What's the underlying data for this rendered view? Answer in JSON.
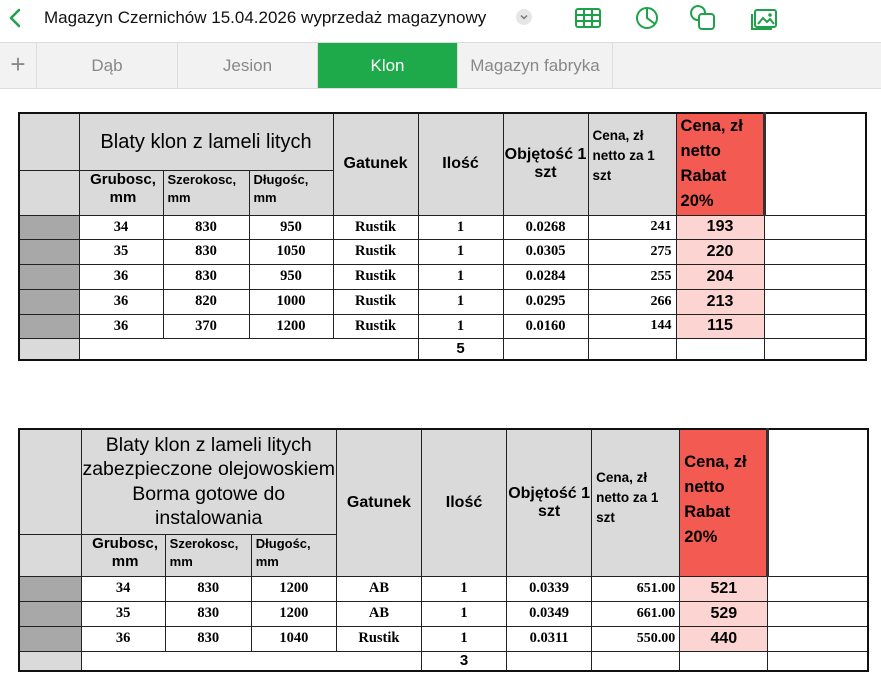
{
  "app": {
    "doc_title": "Magazyn Czernichów 15.04.2026 wyprzedaż magazynowy",
    "accent": "#1ea94b",
    "icons": [
      "back-chevron",
      "dropdown-chevron",
      "table-icon",
      "chart-icon",
      "shapes-icon",
      "media-icon",
      "add-sheet-icon"
    ]
  },
  "tabs": [
    {
      "label": "Dąb"
    },
    {
      "label": "Jesion"
    },
    {
      "label": "Klon",
      "active": true
    },
    {
      "label": "Magazyn fabryka"
    }
  ],
  "table1": {
    "title": "Blaty klon z lameli litych",
    "col_grubosc": "Grubosc, mm",
    "col_szerokosc": "Szerokosc, mm",
    "col_dlugosc": "Długośc, mm",
    "col_gatunek": "Gatunek",
    "col_ilosc": "Ilość",
    "col_objetosc": "Objętość 1 szt",
    "col_cena": "Cena, zł netto za 1 szt",
    "col_cena_rabat": "Cena, zł netto Rabat 20%",
    "rows": [
      {
        "g": "34",
        "s": "830",
        "d": "950",
        "gat": "Rustik",
        "il": "1",
        "obj": "0.0268",
        "cena": "241",
        "rabat": "193"
      },
      {
        "g": "35",
        "s": "830",
        "d": "1050",
        "gat": "Rustik",
        "il": "1",
        "obj": "0.0305",
        "cena": "275",
        "rabat": "220"
      },
      {
        "g": "36",
        "s": "830",
        "d": "950",
        "gat": "Rustik",
        "il": "1",
        "obj": "0.0284",
        "cena": "255",
        "rabat": "204"
      },
      {
        "g": "36",
        "s": "820",
        "d": "1000",
        "gat": "Rustik",
        "il": "1",
        "obj": "0.0295",
        "cena": "266",
        "rabat": "213"
      },
      {
        "g": "36",
        "s": "370",
        "d": "1200",
        "gat": "Rustik",
        "il": "1",
        "obj": "0.0160",
        "cena": "144",
        "rabat": "115"
      }
    ],
    "total": "5"
  },
  "table2": {
    "title": "Blaty klon z lameli litych zabezpieczone olejowoskiem Borma gotowe do instalowania",
    "col_grubosc": "Grubosc, mm",
    "col_szerokosc": "Szerokosc, mm",
    "col_dlugosc": "Długośc, mm",
    "col_gatunek": "Gatunek",
    "col_ilosc": "Ilość",
    "col_objetosc": "Objętość 1 szt",
    "col_cena": "Cena, zł netto za 1 szt",
    "col_cena_rabat": "Cena, zł netto Rabat 20%",
    "rows": [
      {
        "g": "34",
        "s": "830",
        "d": "1200",
        "gat": "AB",
        "il": "1",
        "obj": "0.0339",
        "cena": "651.00",
        "rabat": "521"
      },
      {
        "g": "35",
        "s": "830",
        "d": "1200",
        "gat": "AB",
        "il": "1",
        "obj": "0.0349",
        "cena": "661.00",
        "rabat": "529"
      },
      {
        "g": "36",
        "s": "830",
        "d": "1040",
        "gat": "Rustik",
        "il": "1",
        "obj": "0.0311",
        "cena": "550.00",
        "rabat": "440"
      }
    ],
    "total": "3"
  }
}
